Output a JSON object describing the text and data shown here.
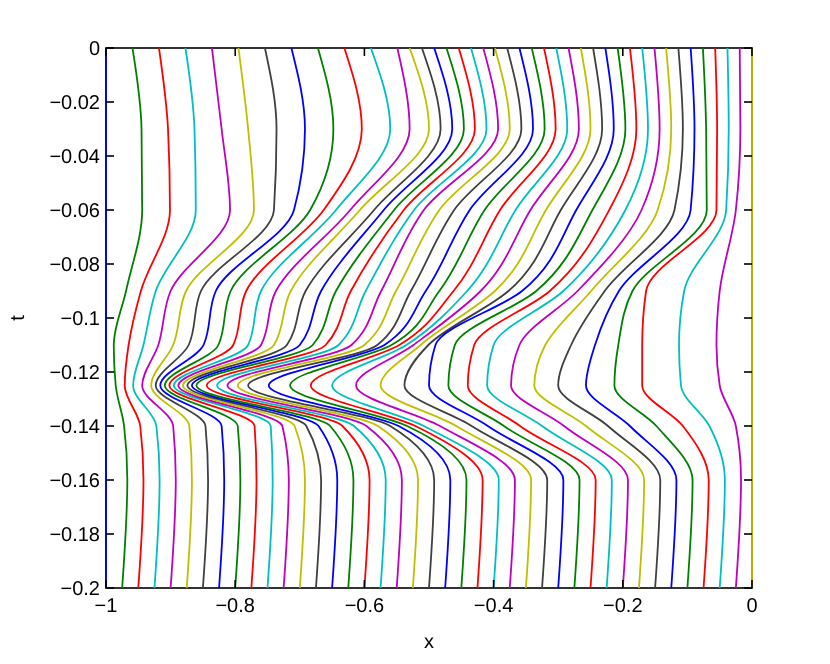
{
  "chart_data": {
    "type": "line",
    "xlabel": "x",
    "ylabel": "t",
    "xlim": [
      -1,
      0
    ],
    "ylim": [
      -0.2,
      0
    ],
    "xticks": [
      -1,
      -0.8,
      -0.6,
      -0.4,
      -0.2,
      0
    ],
    "yticks": [
      -0.2,
      -0.18,
      -0.16,
      -0.14,
      -0.12,
      -0.1,
      -0.08,
      -0.06,
      -0.04,
      -0.02,
      0
    ],
    "grid": false,
    "marker": "none",
    "line_style": "solid",
    "series": [
      {
        "color": "#0000ff",
        "x": [
          -1,
          -1,
          -1,
          -1,
          -1,
          -1,
          -1,
          -1,
          -1
        ],
        "values": [
          0,
          -0.03,
          -0.06,
          -0.09,
          -0.11,
          -0.125,
          -0.14,
          -0.16,
          -0.2
        ]
      },
      {
        "color": "#008000",
        "x": [
          -0.959,
          -0.945,
          -0.944,
          -0.969,
          -0.988,
          -0.985,
          -0.972,
          -0.967,
          -0.975
        ],
        "values": [
          0,
          -0.03,
          -0.06,
          -0.09,
          -0.11,
          -0.125,
          -0.14,
          -0.16,
          -0.2
        ]
      },
      {
        "color": "#ff0000",
        "x": [
          -0.918,
          -0.904,
          -0.901,
          -0.946,
          -0.965,
          -0.971,
          -0.947,
          -0.942,
          -0.95
        ],
        "values": [
          0,
          -0.03,
          -0.06,
          -0.09,
          -0.11,
          -0.125,
          -0.14,
          -0.16,
          -0.2
        ]
      },
      {
        "color": "#00bfbf",
        "x": [
          -0.877,
          -0.863,
          -0.861,
          -0.923,
          -0.942,
          -0.958,
          -0.922,
          -0.917,
          -0.925
        ],
        "values": [
          0,
          -0.03,
          -0.06,
          -0.09,
          -0.11,
          -0.125,
          -0.14,
          -0.16,
          -0.2
        ]
      },
      {
        "color": "#bf00bf",
        "x": [
          -0.836,
          -0.821,
          -0.808,
          -0.9,
          -0.919,
          -0.944,
          -0.896,
          -0.892,
          -0.9
        ],
        "values": [
          0,
          -0.03,
          -0.06,
          -0.09,
          -0.11,
          -0.125,
          -0.14,
          -0.16,
          -0.2
        ]
      },
      {
        "color": "#bfbf00",
        "x": [
          -0.795,
          -0.78,
          -0.771,
          -0.876,
          -0.896,
          -0.93,
          -0.871,
          -0.867,
          -0.875
        ],
        "values": [
          0,
          -0.03,
          -0.06,
          -0.09,
          -0.11,
          -0.125,
          -0.14,
          -0.16,
          -0.2
        ]
      },
      {
        "color": "#404040",
        "x": [
          -0.754,
          -0.736,
          -0.74,
          -0.853,
          -0.872,
          -0.923,
          -0.846,
          -0.842,
          -0.85
        ],
        "values": [
          0,
          -0.03,
          -0.06,
          -0.09,
          -0.11,
          -0.125,
          -0.14,
          -0.16,
          -0.2
        ]
      },
      {
        "color": "#0000ff",
        "x": [
          -0.713,
          -0.692,
          -0.709,
          -0.83,
          -0.849,
          -0.916,
          -0.821,
          -0.817,
          -0.825
        ],
        "values": [
          0,
          -0.03,
          -0.06,
          -0.09,
          -0.11,
          -0.125,
          -0.14,
          -0.16,
          -0.2
        ]
      },
      {
        "color": "#008000",
        "x": [
          -0.672,
          -0.648,
          -0.684,
          -0.807,
          -0.826,
          -0.909,
          -0.796,
          -0.792,
          -0.8
        ],
        "values": [
          0,
          -0.03,
          -0.06,
          -0.09,
          -0.11,
          -0.125,
          -0.14,
          -0.16,
          -0.2
        ]
      },
      {
        "color": "#ff0000",
        "x": [
          -0.631,
          -0.604,
          -0.663,
          -0.783,
          -0.803,
          -0.902,
          -0.77,
          -0.767,
          -0.775
        ],
        "values": [
          0,
          -0.03,
          -0.06,
          -0.09,
          -0.11,
          -0.125,
          -0.14,
          -0.16,
          -0.2
        ]
      },
      {
        "color": "#00bfbf",
        "x": [
          -0.59,
          -0.56,
          -0.644,
          -0.76,
          -0.78,
          -0.895,
          -0.745,
          -0.742,
          -0.75
        ],
        "values": [
          0,
          -0.03,
          -0.06,
          -0.09,
          -0.11,
          -0.125,
          -0.14,
          -0.16,
          -0.2
        ]
      },
      {
        "color": "#bf00bf",
        "x": [
          -0.549,
          -0.53,
          -0.622,
          -0.737,
          -0.76,
          -0.888,
          -0.727,
          -0.717,
          -0.725
        ],
        "values": [
          0,
          -0.03,
          -0.06,
          -0.09,
          -0.11,
          -0.125,
          -0.14,
          -0.16,
          -0.2
        ]
      },
      {
        "color": "#bfbf00",
        "x": [
          -0.53,
          -0.5,
          -0.607,
          -0.714,
          -0.74,
          -0.881,
          -0.708,
          -0.692,
          -0.7
        ],
        "values": [
          0,
          -0.03,
          -0.06,
          -0.09,
          -0.11,
          -0.125,
          -0.14,
          -0.16,
          -0.2
        ]
      },
      {
        "color": "#404040",
        "x": [
          -0.511,
          -0.482,
          -0.585,
          -0.691,
          -0.72,
          -0.874,
          -0.69,
          -0.667,
          -0.675
        ],
        "values": [
          0,
          -0.03,
          -0.06,
          -0.09,
          -0.11,
          -0.125,
          -0.14,
          -0.16,
          -0.2
        ]
      },
      {
        "color": "#0000ff",
        "x": [
          -0.492,
          -0.464,
          -0.57,
          -0.667,
          -0.7,
          -0.867,
          -0.671,
          -0.642,
          -0.65
        ],
        "values": [
          0,
          -0.03,
          -0.06,
          -0.09,
          -0.11,
          -0.125,
          -0.14,
          -0.16,
          -0.2
        ]
      },
      {
        "color": "#008000",
        "x": [
          -0.473,
          -0.446,
          -0.554,
          -0.644,
          -0.68,
          -0.86,
          -0.653,
          -0.617,
          -0.625
        ],
        "values": [
          0,
          -0.03,
          -0.06,
          -0.09,
          -0.11,
          -0.125,
          -0.14,
          -0.16,
          -0.2
        ]
      },
      {
        "color": "#ff0000",
        "x": [
          -0.454,
          -0.429,
          -0.539,
          -0.621,
          -0.66,
          -0.844,
          -0.634,
          -0.592,
          -0.6
        ],
        "values": [
          0,
          -0.03,
          -0.06,
          -0.09,
          -0.11,
          -0.125,
          -0.14,
          -0.16,
          -0.2
        ]
      },
      {
        "color": "#00bfbf",
        "x": [
          -0.435,
          -0.411,
          -0.523,
          -0.598,
          -0.64,
          -0.828,
          -0.616,
          -0.567,
          -0.575
        ],
        "values": [
          0,
          -0.03,
          -0.06,
          -0.09,
          -0.11,
          -0.125,
          -0.14,
          -0.16,
          -0.2
        ]
      },
      {
        "color": "#bf00bf",
        "x": [
          -0.416,
          -0.393,
          -0.508,
          -0.574,
          -0.62,
          -0.812,
          -0.597,
          -0.542,
          -0.55
        ],
        "values": [
          0,
          -0.03,
          -0.06,
          -0.09,
          -0.11,
          -0.125,
          -0.14,
          -0.16,
          -0.2
        ]
      },
      {
        "color": "#bfbf00",
        "x": [
          -0.398,
          -0.375,
          -0.484,
          -0.551,
          -0.6,
          -0.796,
          -0.579,
          -0.517,
          -0.525
        ],
        "values": [
          0,
          -0.03,
          -0.06,
          -0.09,
          -0.11,
          -0.125,
          -0.14,
          -0.16,
          -0.2
        ]
      },
      {
        "color": "#404040",
        "x": [
          -0.379,
          -0.357,
          -0.461,
          -0.528,
          -0.58,
          -0.78,
          -0.56,
          -0.492,
          -0.5
        ],
        "values": [
          0,
          -0.03,
          -0.06,
          -0.09,
          -0.11,
          -0.125,
          -0.14,
          -0.16,
          -0.2
        ]
      },
      {
        "color": "#0000ff",
        "x": [
          -0.36,
          -0.339,
          -0.437,
          -0.505,
          -0.569,
          -0.748,
          -0.547,
          -0.467,
          -0.475
        ],
        "values": [
          0,
          -0.03,
          -0.06,
          -0.09,
          -0.11,
          -0.125,
          -0.14,
          -0.16,
          -0.2
        ]
      },
      {
        "color": "#008000",
        "x": [
          -0.341,
          -0.321,
          -0.414,
          -0.484,
          -0.558,
          -0.715,
          -0.534,
          -0.442,
          -0.45
        ],
        "values": [
          0,
          -0.03,
          -0.06,
          -0.09,
          -0.11,
          -0.125,
          -0.14,
          -0.16,
          -0.2
        ]
      },
      {
        "color": "#ff0000",
        "x": [
          -0.322,
          -0.304,
          -0.39,
          -0.462,
          -0.546,
          -0.683,
          -0.521,
          -0.417,
          -0.425
        ],
        "values": [
          0,
          -0.03,
          -0.06,
          -0.09,
          -0.11,
          -0.125,
          -0.14,
          -0.16,
          -0.2
        ]
      },
      {
        "color": "#00bfbf",
        "x": [
          -0.303,
          -0.286,
          -0.366,
          -0.441,
          -0.535,
          -0.65,
          -0.508,
          -0.392,
          -0.4
        ],
        "values": [
          0,
          -0.03,
          -0.06,
          -0.09,
          -0.11,
          -0.125,
          -0.14,
          -0.16,
          -0.2
        ]
      },
      {
        "color": "#bf00bf",
        "x": [
          -0.284,
          -0.268,
          -0.343,
          -0.42,
          -0.524,
          -0.613,
          -0.483,
          -0.367,
          -0.375
        ],
        "values": [
          0,
          -0.03,
          -0.06,
          -0.09,
          -0.11,
          -0.125,
          -0.14,
          -0.16,
          -0.2
        ]
      },
      {
        "color": "#bfbf00",
        "x": [
          -0.265,
          -0.25,
          -0.319,
          -0.398,
          -0.513,
          -0.575,
          -0.458,
          -0.342,
          -0.35
        ],
        "values": [
          0,
          -0.03,
          -0.06,
          -0.09,
          -0.11,
          -0.125,
          -0.14,
          -0.16,
          -0.2
        ]
      },
      {
        "color": "#404040",
        "x": [
          -0.246,
          -0.232,
          -0.296,
          -0.377,
          -0.501,
          -0.538,
          -0.434,
          -0.317,
          -0.325
        ],
        "values": [
          0,
          -0.03,
          -0.06,
          -0.09,
          -0.11,
          -0.125,
          -0.14,
          -0.16,
          -0.2
        ]
      },
      {
        "color": "#0000ff",
        "x": [
          -0.227,
          -0.214,
          -0.272,
          -0.356,
          -0.49,
          -0.5,
          -0.409,
          -0.292,
          -0.3
        ],
        "values": [
          0,
          -0.03,
          -0.06,
          -0.09,
          -0.11,
          -0.125,
          -0.14,
          -0.16,
          -0.2
        ]
      },
      {
        "color": "#008000",
        "x": [
          -0.208,
          -0.196,
          -0.247,
          -0.334,
          -0.46,
          -0.47,
          -0.384,
          -0.267,
          -0.275
        ],
        "values": [
          0,
          -0.03,
          -0.06,
          -0.09,
          -0.11,
          -0.125,
          -0.14,
          -0.16,
          -0.2
        ]
      },
      {
        "color": "#ff0000",
        "x": [
          -0.189,
          -0.179,
          -0.221,
          -0.313,
          -0.43,
          -0.44,
          -0.359,
          -0.242,
          -0.25
        ],
        "values": [
          0,
          -0.03,
          -0.06,
          -0.09,
          -0.11,
          -0.125,
          -0.14,
          -0.16,
          -0.2
        ]
      },
      {
        "color": "#00bfbf",
        "x": [
          -0.17,
          -0.161,
          -0.196,
          -0.292,
          -0.4,
          -0.41,
          -0.325,
          -0.217,
          -0.225
        ],
        "values": [
          0,
          -0.03,
          -0.06,
          -0.09,
          -0.11,
          -0.125,
          -0.14,
          -0.16,
          -0.2
        ]
      },
      {
        "color": "#bf00bf",
        "x": [
          -0.151,
          -0.143,
          -0.171,
          -0.27,
          -0.36,
          -0.373,
          -0.291,
          -0.192,
          -0.2
        ],
        "values": [
          0,
          -0.03,
          -0.06,
          -0.09,
          -0.11,
          -0.125,
          -0.14,
          -0.16,
          -0.2
        ]
      },
      {
        "color": "#bfbf00",
        "x": [
          -0.133,
          -0.125,
          -0.146,
          -0.249,
          -0.32,
          -0.337,
          -0.257,
          -0.167,
          -0.175
        ],
        "values": [
          0,
          -0.03,
          -0.06,
          -0.09,
          -0.11,
          -0.125,
          -0.14,
          -0.16,
          -0.2
        ]
      },
      {
        "color": "#404040",
        "x": [
          -0.114,
          -0.107,
          -0.12,
          -0.228,
          -0.28,
          -0.3,
          -0.223,
          -0.142,
          -0.15
        ],
        "values": [
          0,
          -0.03,
          -0.06,
          -0.09,
          -0.11,
          -0.125,
          -0.14,
          -0.16,
          -0.2
        ]
      },
      {
        "color": "#0000ff",
        "x": [
          -0.095,
          -0.089,
          -0.095,
          -0.206,
          -0.243,
          -0.257,
          -0.189,
          -0.117,
          -0.125
        ],
        "values": [
          0,
          -0.03,
          -0.06,
          -0.09,
          -0.11,
          -0.125,
          -0.14,
          -0.16,
          -0.2
        ]
      },
      {
        "color": "#008000",
        "x": [
          -0.076,
          -0.071,
          -0.07,
          -0.185,
          -0.207,
          -0.213,
          -0.148,
          -0.092,
          -0.1
        ],
        "values": [
          0,
          -0.03,
          -0.06,
          -0.09,
          -0.11,
          -0.125,
          -0.14,
          -0.16,
          -0.2
        ]
      },
      {
        "color": "#ff0000",
        "x": [
          -0.057,
          -0.054,
          -0.055,
          -0.164,
          -0.17,
          -0.17,
          -0.107,
          -0.067,
          -0.075
        ],
        "values": [
          0,
          -0.03,
          -0.06,
          -0.09,
          -0.11,
          -0.125,
          -0.14,
          -0.16,
          -0.2
        ]
      },
      {
        "color": "#00bfbf",
        "x": [
          -0.038,
          -0.036,
          -0.04,
          -0.105,
          -0.113,
          -0.11,
          -0.066,
          -0.042,
          -0.05
        ],
        "values": [
          0,
          -0.03,
          -0.06,
          -0.09,
          -0.11,
          -0.125,
          -0.14,
          -0.16,
          -0.2
        ]
      },
      {
        "color": "#bf00bf",
        "x": [
          -0.019,
          -0.018,
          -0.025,
          -0.05,
          -0.055,
          -0.05,
          -0.025,
          -0.017,
          -0.025
        ],
        "values": [
          0,
          -0.03,
          -0.06,
          -0.09,
          -0.11,
          -0.125,
          -0.14,
          -0.16,
          -0.2
        ]
      },
      {
        "color": "#bfbf00",
        "x": [
          0,
          0,
          0,
          0,
          0,
          0,
          0,
          0,
          0
        ],
        "values": [
          0,
          -0.03,
          -0.06,
          -0.09,
          -0.11,
          -0.125,
          -0.14,
          -0.16,
          -0.2
        ]
      }
    ]
  }
}
